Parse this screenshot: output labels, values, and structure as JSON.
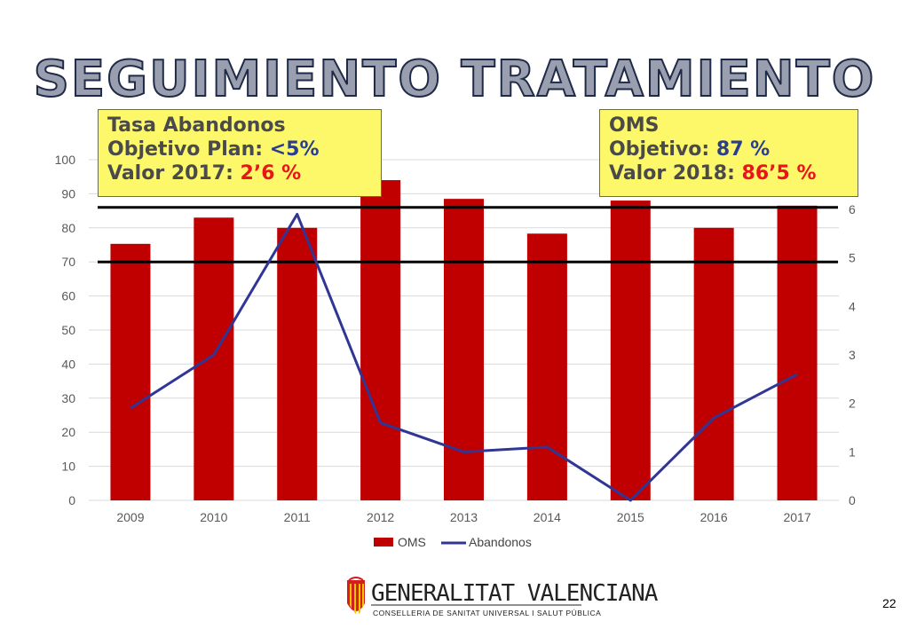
{
  "title": "SEGUIMIENTO TRATAMIENTO",
  "note_left": {
    "line1": "Tasa Abandonos",
    "line2_label": "Objetivo Plan: ",
    "line2_value": "<5%",
    "line3_label": "Valor 2017: ",
    "line3_value": "2’6 %"
  },
  "note_right": {
    "line1": "OMS",
    "line2_label": "Objetivo: ",
    "line2_value": "87 %",
    "line3_label": "Valor 2018: ",
    "line3_value": "86’5 %"
  },
  "chart_data": {
    "type": "bar",
    "categories": [
      "2009",
      "2010",
      "2011",
      "2012",
      "2013",
      "2014",
      "2015",
      "2016",
      "2017"
    ],
    "series": [
      {
        "name": "OMS",
        "kind": "bar",
        "axis": "left",
        "color": "#c00000",
        "values": [
          75.3,
          83,
          80,
          94,
          88.5,
          78.3,
          88,
          80,
          86.5
        ]
      },
      {
        "name": "Abandonos",
        "kind": "line",
        "axis": "right",
        "color": "#2f3694",
        "values": [
          1.9,
          3.0,
          5.9,
          1.6,
          1.0,
          1.1,
          0.0,
          1.7,
          2.6
        ]
      }
    ],
    "ylim_left": [
      0,
      100
    ],
    "yticks_left": [
      "0",
      "10",
      "20",
      "30",
      "40",
      "50",
      "60",
      "70",
      "80",
      "90",
      "100"
    ],
    "ylim_right": [
      0,
      7
    ],
    "yticks_right": [
      "0",
      "1",
      "2",
      "3",
      "4",
      "5",
      "6"
    ],
    "reference_lines_left": [
      70,
      86
    ],
    "legend_position": "bottom"
  },
  "logo": {
    "name": "GENERALITAT VALENCIANA",
    "subtitle": "CONSELLERIA DE SANITAT UNIVERSAL I SALUT PÚBLICA"
  },
  "page_number": "22"
}
